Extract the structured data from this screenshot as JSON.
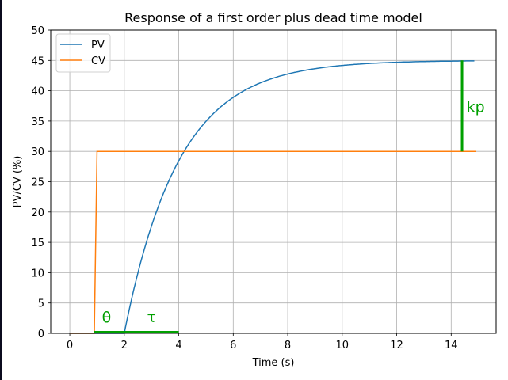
{
  "chart_data": {
    "type": "line",
    "title": "Response of a first order plus dead time model",
    "xlabel": "Time (s)",
    "ylabel": "PV/CV (%)",
    "xlim": [
      -0.7,
      15.65
    ],
    "ylim": [
      0,
      50
    ],
    "xticks": [
      0,
      2,
      4,
      6,
      8,
      10,
      12,
      14
    ],
    "yticks": [
      0,
      5,
      10,
      15,
      20,
      25,
      30,
      35,
      40,
      45,
      50
    ],
    "grid": true,
    "legend_position": "upper left",
    "series": [
      {
        "name": "PV",
        "color": "#1f77b4",
        "model": "FOPDT: kp=1.5, theta=1, tau=2, step at t=1",
        "x": [
          0,
          1,
          2,
          2.5,
          3,
          3.5,
          4,
          5,
          6,
          7,
          8,
          9,
          10,
          11,
          12,
          13,
          14,
          14.9
        ],
        "y": [
          0,
          0,
          0,
          10.0,
          17.7,
          23.7,
          28.4,
          34.9,
          38.9,
          41.3,
          42.8,
          43.7,
          44.2,
          44.5,
          44.7,
          44.8,
          44.9,
          44.95
        ]
      },
      {
        "name": "CV",
        "color": "#ff7f0e",
        "x": [
          0,
          0.9,
          1.0,
          14.9
        ],
        "y": [
          0,
          0,
          30,
          30
        ]
      }
    ],
    "annotations": [
      {
        "text": "θ",
        "x": 1.35,
        "y": 1.8,
        "color": "#00a000"
      },
      {
        "text": "τ",
        "x": 3.0,
        "y": 1.8,
        "color": "#00a000"
      },
      {
        "text": "kp",
        "x": 14.9,
        "y": 36.5,
        "color": "#00a000"
      }
    ],
    "markers": [
      {
        "type": "hline",
        "from": 0.9,
        "to": 2.0,
        "y": 0.2,
        "label": "theta segment"
      },
      {
        "type": "hline",
        "from": 2.0,
        "to": 4.0,
        "y": 0.2,
        "label": "tau segment"
      },
      {
        "type": "vline",
        "x": 14.4,
        "from": 30,
        "to": 45,
        "label": "kp segment"
      }
    ]
  },
  "legend": {
    "items": [
      {
        "label": "PV",
        "color": "#1f77b4"
      },
      {
        "label": "CV",
        "color": "#ff7f0e"
      }
    ]
  }
}
